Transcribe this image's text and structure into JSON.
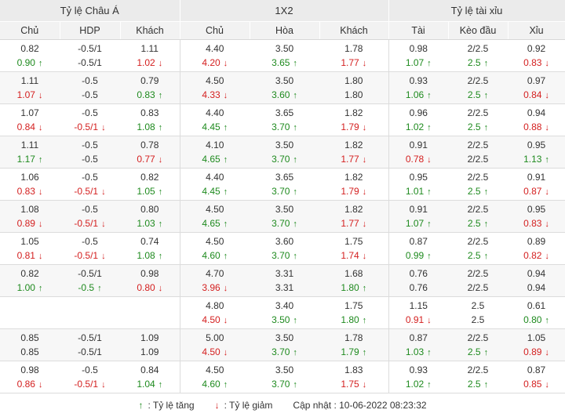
{
  "groups": [
    "Tỷ lệ Châu Á",
    "1X2",
    "Tỷ lệ tài xỉu"
  ],
  "columns": [
    "Chủ",
    "HDP",
    "Khách",
    "Chủ",
    "Hòa",
    "Khách",
    "Tài",
    "Kèo đầu",
    "Xỉu"
  ],
  "rows": [
    [
      [
        "0.82",
        "",
        ""
      ],
      [
        "-0.5/1",
        "",
        ""
      ],
      [
        "1.11",
        "",
        ""
      ],
      [
        "4.40",
        "",
        ""
      ],
      [
        "3.50",
        "",
        ""
      ],
      [
        "1.78",
        "",
        ""
      ],
      [
        "0.98",
        "",
        ""
      ],
      [
        "2/2.5",
        "",
        ""
      ],
      [
        "0.92",
        "",
        ""
      ],
      [
        "0.90",
        "up",
        "↑"
      ],
      [
        "-0.5/1",
        "",
        ""
      ],
      [
        "1.02",
        "down",
        "↓"
      ],
      [
        "4.20",
        "down",
        "↓"
      ],
      [
        "3.65",
        "up",
        "↑"
      ],
      [
        "1.77",
        "down",
        "↓"
      ],
      [
        "1.07",
        "up",
        "↑"
      ],
      [
        "2.5",
        "up",
        "↑"
      ],
      [
        "0.83",
        "down",
        "↓"
      ]
    ],
    [
      [
        "1.11",
        "",
        ""
      ],
      [
        "-0.5",
        "",
        ""
      ],
      [
        "0.79",
        "",
        ""
      ],
      [
        "4.50",
        "",
        ""
      ],
      [
        "3.50",
        "",
        ""
      ],
      [
        "1.80",
        "",
        ""
      ],
      [
        "0.93",
        "",
        ""
      ],
      [
        "2/2.5",
        "",
        ""
      ],
      [
        "0.97",
        "",
        ""
      ],
      [
        "1.07",
        "down",
        "↓"
      ],
      [
        "-0.5",
        "",
        ""
      ],
      [
        "0.83",
        "up",
        "↑"
      ],
      [
        "4.33",
        "down",
        "↓"
      ],
      [
        "3.60",
        "up",
        "↑"
      ],
      [
        "1.80",
        "",
        ""
      ],
      [
        "1.06",
        "up",
        "↑"
      ],
      [
        "2.5",
        "up",
        "↑"
      ],
      [
        "0.84",
        "down",
        "↓"
      ]
    ],
    [
      [
        "1.07",
        "",
        ""
      ],
      [
        "-0.5",
        "",
        ""
      ],
      [
        "0.83",
        "",
        ""
      ],
      [
        "4.40",
        "",
        ""
      ],
      [
        "3.65",
        "",
        ""
      ],
      [
        "1.82",
        "",
        ""
      ],
      [
        "0.96",
        "",
        ""
      ],
      [
        "2/2.5",
        "",
        ""
      ],
      [
        "0.94",
        "",
        ""
      ],
      [
        "0.84",
        "down",
        "↓"
      ],
      [
        "-0.5/1",
        "down",
        "↓"
      ],
      [
        "1.08",
        "up",
        "↑"
      ],
      [
        "4.45",
        "up",
        "↑"
      ],
      [
        "3.70",
        "up",
        "↑"
      ],
      [
        "1.79",
        "down",
        "↓"
      ],
      [
        "1.02",
        "up",
        "↑"
      ],
      [
        "2.5",
        "up",
        "↑"
      ],
      [
        "0.88",
        "down",
        "↓"
      ]
    ],
    [
      [
        "1.11",
        "",
        ""
      ],
      [
        "-0.5",
        "",
        ""
      ],
      [
        "0.78",
        "",
        ""
      ],
      [
        "4.10",
        "",
        ""
      ],
      [
        "3.50",
        "",
        ""
      ],
      [
        "1.82",
        "",
        ""
      ],
      [
        "0.91",
        "",
        ""
      ],
      [
        "2/2.5",
        "",
        ""
      ],
      [
        "0.95",
        "",
        ""
      ],
      [
        "1.17",
        "up",
        "↑"
      ],
      [
        "-0.5",
        "",
        ""
      ],
      [
        "0.77",
        "down",
        "↓"
      ],
      [
        "4.65",
        "up",
        "↑"
      ],
      [
        "3.70",
        "up",
        "↑"
      ],
      [
        "1.77",
        "down",
        "↓"
      ],
      [
        "0.78",
        "down",
        "↓"
      ],
      [
        "2/2.5",
        "",
        ""
      ],
      [
        "1.13",
        "up",
        "↑"
      ]
    ],
    [
      [
        "1.06",
        "",
        ""
      ],
      [
        "-0.5",
        "",
        ""
      ],
      [
        "0.82",
        "",
        ""
      ],
      [
        "4.40",
        "",
        ""
      ],
      [
        "3.65",
        "",
        ""
      ],
      [
        "1.82",
        "",
        ""
      ],
      [
        "0.95",
        "",
        ""
      ],
      [
        "2/2.5",
        "",
        ""
      ],
      [
        "0.91",
        "",
        ""
      ],
      [
        "0.83",
        "down",
        "↓"
      ],
      [
        "-0.5/1",
        "down",
        "↓"
      ],
      [
        "1.05",
        "up",
        "↑"
      ],
      [
        "4.45",
        "up",
        "↑"
      ],
      [
        "3.70",
        "up",
        "↑"
      ],
      [
        "1.79",
        "down",
        "↓"
      ],
      [
        "1.01",
        "up",
        "↑"
      ],
      [
        "2.5",
        "up",
        "↑"
      ],
      [
        "0.87",
        "down",
        "↓"
      ]
    ],
    [
      [
        "1.08",
        "",
        ""
      ],
      [
        "-0.5",
        "",
        ""
      ],
      [
        "0.80",
        "",
        ""
      ],
      [
        "4.50",
        "",
        ""
      ],
      [
        "3.50",
        "",
        ""
      ],
      [
        "1.82",
        "",
        ""
      ],
      [
        "0.91",
        "",
        ""
      ],
      [
        "2/2.5",
        "",
        ""
      ],
      [
        "0.95",
        "",
        ""
      ],
      [
        "0.89",
        "down",
        "↓"
      ],
      [
        "-0.5/1",
        "down",
        "↓"
      ],
      [
        "1.03",
        "up",
        "↑"
      ],
      [
        "4.65",
        "up",
        "↑"
      ],
      [
        "3.70",
        "up",
        "↑"
      ],
      [
        "1.77",
        "down",
        "↓"
      ],
      [
        "1.07",
        "up",
        "↑"
      ],
      [
        "2.5",
        "up",
        "↑"
      ],
      [
        "0.83",
        "down",
        "↓"
      ]
    ],
    [
      [
        "1.05",
        "",
        ""
      ],
      [
        "-0.5",
        "",
        ""
      ],
      [
        "0.74",
        "",
        ""
      ],
      [
        "4.50",
        "",
        ""
      ],
      [
        "3.60",
        "",
        ""
      ],
      [
        "1.75",
        "",
        ""
      ],
      [
        "0.87",
        "",
        ""
      ],
      [
        "2/2.5",
        "",
        ""
      ],
      [
        "0.89",
        "",
        ""
      ],
      [
        "0.81",
        "down",
        "↓"
      ],
      [
        "-0.5/1",
        "down",
        "↓"
      ],
      [
        "1.08",
        "up",
        "↑"
      ],
      [
        "4.60",
        "up",
        "↑"
      ],
      [
        "3.70",
        "up",
        "↑"
      ],
      [
        "1.74",
        "down",
        "↓"
      ],
      [
        "0.99",
        "up",
        "↑"
      ],
      [
        "2.5",
        "up",
        "↑"
      ],
      [
        "0.82",
        "down",
        "↓"
      ]
    ],
    [
      [
        "0.82",
        "",
        ""
      ],
      [
        "-0.5/1",
        "",
        ""
      ],
      [
        "0.98",
        "",
        ""
      ],
      [
        "4.70",
        "",
        ""
      ],
      [
        "3.31",
        "",
        ""
      ],
      [
        "1.68",
        "",
        ""
      ],
      [
        "0.76",
        "",
        ""
      ],
      [
        "2/2.5",
        "",
        ""
      ],
      [
        "0.94",
        "",
        ""
      ],
      [
        "1.00",
        "up",
        "↑"
      ],
      [
        "-0.5",
        "up",
        "↑"
      ],
      [
        "0.80",
        "down",
        "↓"
      ],
      [
        "3.96",
        "down",
        "↓"
      ],
      [
        "3.31",
        "",
        ""
      ],
      [
        "1.80",
        "up",
        "↑"
      ],
      [
        "0.76",
        "",
        ""
      ],
      [
        "2/2.5",
        "",
        ""
      ],
      [
        "0.94",
        "",
        ""
      ]
    ],
    [
      [
        "",
        "",
        ""
      ],
      [
        "",
        "",
        ""
      ],
      [
        "",
        "",
        ""
      ],
      [
        "4.80",
        "",
        ""
      ],
      [
        "3.40",
        "",
        ""
      ],
      [
        "1.75",
        "",
        ""
      ],
      [
        "1.15",
        "",
        ""
      ],
      [
        "2.5",
        "",
        ""
      ],
      [
        "0.61",
        "",
        ""
      ],
      [
        "",
        "",
        ""
      ],
      [
        "",
        "",
        ""
      ],
      [
        "",
        "",
        ""
      ],
      [
        "4.50",
        "down",
        "↓"
      ],
      [
        "3.50",
        "up",
        "↑"
      ],
      [
        "1.80",
        "up",
        "↑"
      ],
      [
        "0.91",
        "down",
        "↓"
      ],
      [
        "2.5",
        "",
        ""
      ],
      [
        "0.80",
        "up",
        "↑"
      ]
    ],
    [
      [
        "0.85",
        "",
        ""
      ],
      [
        "-0.5/1",
        "",
        ""
      ],
      [
        "1.09",
        "",
        ""
      ],
      [
        "5.00",
        "",
        ""
      ],
      [
        "3.50",
        "",
        ""
      ],
      [
        "1.78",
        "",
        ""
      ],
      [
        "0.87",
        "",
        ""
      ],
      [
        "2/2.5",
        "",
        ""
      ],
      [
        "1.05",
        "",
        ""
      ],
      [
        "0.85",
        "",
        ""
      ],
      [
        "-0.5/1",
        "",
        ""
      ],
      [
        "1.09",
        "",
        ""
      ],
      [
        "4.50",
        "down",
        "↓"
      ],
      [
        "3.70",
        "up",
        "↑"
      ],
      [
        "1.79",
        "up",
        "↑"
      ],
      [
        "1.03",
        "up",
        "↑"
      ],
      [
        "2.5",
        "up",
        "↑"
      ],
      [
        "0.89",
        "down",
        "↓"
      ]
    ],
    [
      [
        "0.98",
        "",
        ""
      ],
      [
        "-0.5",
        "",
        ""
      ],
      [
        "0.84",
        "",
        ""
      ],
      [
        "4.50",
        "",
        ""
      ],
      [
        "3.50",
        "",
        ""
      ],
      [
        "1.83",
        "",
        ""
      ],
      [
        "0.93",
        "",
        ""
      ],
      [
        "2/2.5",
        "",
        ""
      ],
      [
        "0.87",
        "",
        ""
      ],
      [
        "0.86",
        "down",
        "↓"
      ],
      [
        "-0.5/1",
        "down",
        "↓"
      ],
      [
        "1.04",
        "up",
        "↑"
      ],
      [
        "4.60",
        "up",
        "↑"
      ],
      [
        "3.70",
        "up",
        "↑"
      ],
      [
        "1.75",
        "down",
        "↓"
      ],
      [
        "1.02",
        "up",
        "↑"
      ],
      [
        "2.5",
        "up",
        "↑"
      ],
      [
        "0.85",
        "down",
        "↓"
      ]
    ]
  ],
  "footer": {
    "up_arrow": "↑",
    "up_label": ": Tỷ lệ tăng",
    "down_arrow": "↓",
    "down_label": ": Tỷ lệ giảm",
    "updated_label": "Cập nhật : 10-06-2022 08:23:32"
  },
  "colors": {
    "up": "#1e8a1e",
    "down": "#d42020",
    "header_bg": "#ebebeb"
  },
  "icons": {
    "up": "arrow-up-icon",
    "down": "arrow-down-icon"
  }
}
